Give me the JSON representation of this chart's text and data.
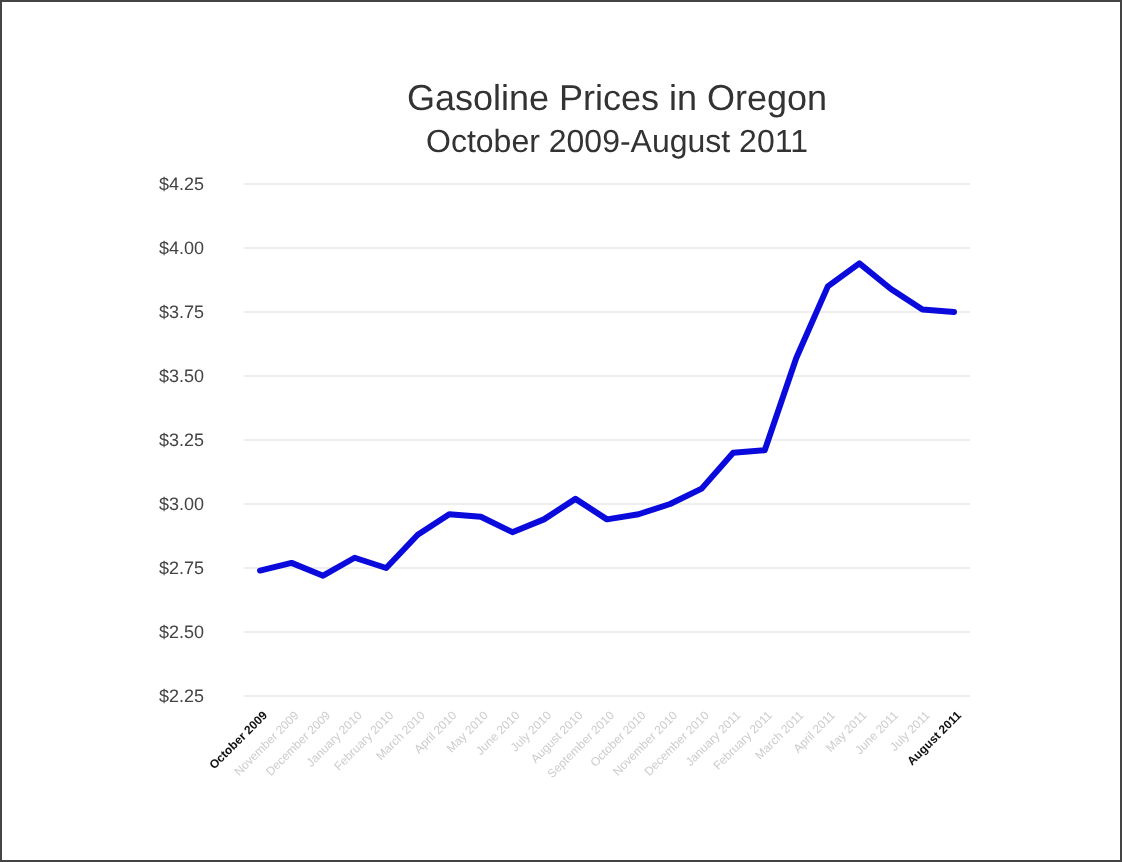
{
  "chart_data": {
    "type": "line",
    "title": "Gasoline Prices in Oregon",
    "subtitle": "October 2009-August 2011",
    "categories": [
      "October 2009",
      "November 2009",
      "December 2009",
      "January 2010",
      "February 2010",
      "March 2010",
      "April 2010",
      "May 2010",
      "June 2010",
      "July 2010",
      "August 2010",
      "September 2010",
      "October 2010",
      "November 2010",
      "December 2010",
      "January 2011",
      "February 2011",
      "March 2011",
      "April 2011",
      "May 2011",
      "June 2011",
      "July 2011",
      "August 2011"
    ],
    "series": [
      {
        "color": "#0a0adc",
        "values": [
          2.74,
          2.77,
          2.72,
          2.79,
          2.75,
          2.88,
          2.96,
          2.95,
          2.89,
          2.94,
          3.02,
          2.94,
          2.96,
          3.0,
          3.06,
          3.2,
          3.21,
          3.57,
          3.85,
          3.94,
          3.84,
          3.76,
          3.75
        ]
      }
    ],
    "ylim": [
      2.25,
      4.25
    ],
    "yticks": [
      {
        "value": 2.25,
        "label": "$2.25"
      },
      {
        "value": 2.5,
        "label": "$2.50"
      },
      {
        "value": 2.75,
        "label": "$2.75"
      },
      {
        "value": 3,
        "label": "$3.00"
      },
      {
        "value": 3.25,
        "label": "$3.25"
      },
      {
        "value": 3.5,
        "label": "$3.50"
      },
      {
        "value": 3.75,
        "label": "$3.75"
      },
      {
        "value": 4,
        "label": "$4.00"
      },
      {
        "value": 4.25,
        "label": "$4.25"
      }
    ],
    "grid": "y",
    "marker": "none",
    "line_style": "solid"
  }
}
